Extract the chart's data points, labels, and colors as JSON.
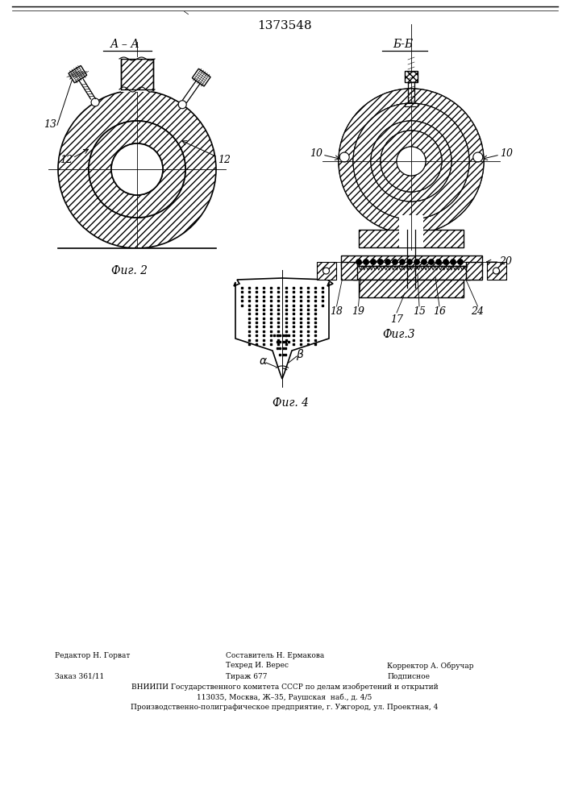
{
  "title": "1373548",
  "bg_color": "#ffffff",
  "fig_width": 7.07,
  "fig_height": 10.0,
  "fig2_label": "Фиг. 2",
  "fig3_label": "Фиг.3",
  "fig4_label": "Фиг. 4",
  "section_aa": "А – А",
  "section_bb": "Б-Б",
  "label_13": "13",
  "label_12a": "12",
  "label_12b": "12",
  "label_18": "18",
  "label_19": "19",
  "label_10a": "10",
  "label_10b": "10",
  "label_20": "20",
  "label_17": "17",
  "label_15": "15",
  "label_16": "16",
  "label_24": "24",
  "footer_col1_r1": "Редактор Н. Горват",
  "footer_col2_r1": "Составитель Н. Ермакова",
  "footer_col2_r2": "Техред И. Верес",
  "footer_col3_r2": "Корректор А. Обручар",
  "footer_col1_r3": "Заказ 361/11",
  "footer_col2_r3": "Тираж 677",
  "footer_col3_r3": "Подписное",
  "footer_vniip": "ВНИИПИ Государственного комитета СССР по делам изобретений и открытий",
  "footer_addr": "113035, Москва, Ж–35, Раушская  наб., д. 4/5",
  "footer_prod": "Производственно-полиграфическое предприятие, г. Ужгород, ул. Проектная, 4"
}
